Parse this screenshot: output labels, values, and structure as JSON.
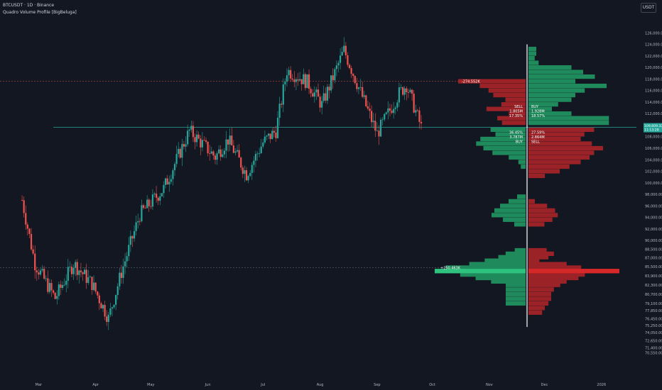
{
  "header": {
    "symbol_line": "BTCUSDT · 1D · Binance",
    "indicator_line": "Quadro Volume Profile [BigBeluga]",
    "currency_button": "USDT"
  },
  "colors": {
    "background": "#131722",
    "up": "#26a69a",
    "down": "#ef5350",
    "profile_green": "#1f8a5b",
    "profile_green_bright": "#2ec27e",
    "profile_red": "#9b2226",
    "profile_red_bright": "#d62828",
    "current_price_line": "#26a69a",
    "axis_text": "#b2b5be",
    "divider": "#ffffff"
  },
  "chart_data": {
    "type": "candlestick",
    "title": "",
    "y_axis": {
      "min": 69000,
      "max": 128000,
      "ticks": [
        "126,000.00",
        "124,000.00",
        "122,000.00",
        "120,000.00",
        "118,000.00",
        "116,000.00",
        "114,000.00",
        "112,000.00",
        "110,000.00",
        "108,000.00",
        "106,000.00",
        "104,000.00",
        "102,000.00",
        "100,000.00",
        "98,000.00",
        "96,000.00",
        "94,000.00",
        "92,000.00",
        "90,000.00",
        "88,500.00",
        "87,000.00",
        "85,500.00",
        "83,900.00",
        "82,300.00",
        "80,700.00",
        "79,100.00",
        "77,850.00",
        "76,450.00",
        "75,250.00",
        "74,050.00",
        "72,650.00",
        "71,400.00",
        "70,550.00"
      ]
    },
    "x_axis": {
      "labels": [
        "Mar",
        "Apr",
        "May",
        "Jun",
        "Jul",
        "Aug",
        "Sep",
        "Oct",
        "Nov",
        "Dec",
        "2026"
      ]
    },
    "current_price": {
      "value": 109609.33,
      "label": "109,609.33",
      "countdown": "11:13:28"
    },
    "price_path_keypoints": [
      {
        "date": "2025-02-20",
        "price": 97000
      },
      {
        "date": "2025-02-27",
        "price": 86000
      },
      {
        "date": "2025-03-10",
        "price": 80000
      },
      {
        "date": "2025-03-20",
        "price": 86000
      },
      {
        "date": "2025-03-30",
        "price": 82500
      },
      {
        "date": "2025-04-08",
        "price": 76500
      },
      {
        "date": "2025-04-15",
        "price": 84500
      },
      {
        "date": "2025-04-25",
        "price": 94500
      },
      {
        "date": "2025-05-08",
        "price": 99000
      },
      {
        "date": "2025-05-22",
        "price": 109000
      },
      {
        "date": "2025-06-05",
        "price": 104500
      },
      {
        "date": "2025-06-12",
        "price": 107500
      },
      {
        "date": "2025-06-22",
        "price": 101500
      },
      {
        "date": "2025-07-01",
        "price": 107000
      },
      {
        "date": "2025-07-08",
        "price": 109000
      },
      {
        "date": "2025-07-14",
        "price": 119500
      },
      {
        "date": "2025-07-25",
        "price": 117500
      },
      {
        "date": "2025-08-02",
        "price": 113500
      },
      {
        "date": "2025-08-14",
        "price": 123000
      },
      {
        "date": "2025-08-22",
        "price": 116500
      },
      {
        "date": "2025-09-01",
        "price": 108500
      },
      {
        "date": "2025-09-13",
        "price": 115500
      },
      {
        "date": "2025-09-17",
        "price": 117000
      },
      {
        "date": "2025-09-25",
        "price": 109600
      }
    ],
    "reference_lines": [
      {
        "price": 117600,
        "label": "-274.552K",
        "style": "dashed",
        "color": "red"
      },
      {
        "price": 85300,
        "label": "+250.463K",
        "style": "dashed",
        "color": "green"
      }
    ],
    "profile_annotations": {
      "upper_left": [
        "SELL",
        "1.805M",
        "17.35%"
      ],
      "upper_right": [
        "BUY",
        "1.928M",
        "18.57%"
      ],
      "lower_left": [
        "36.45%",
        "3.787M",
        "BUY"
      ],
      "lower_right": [
        "27.59%",
        "2.864M",
        "SELL"
      ]
    },
    "volume_profile": {
      "upper_left_bins": [
        {
          "price": 117600,
          "vol": 1.0
        },
        {
          "price": 116800,
          "vol": 0.68
        },
        {
          "price": 116000,
          "vol": 0.55
        },
        {
          "price": 115200,
          "vol": 0.48
        },
        {
          "price": 114400,
          "vol": 0.3
        },
        {
          "price": 113600,
          "vol": 0.36
        },
        {
          "price": 112800,
          "vol": 0.58
        },
        {
          "price": 112000,
          "vol": 0.25
        },
        {
          "price": 111200,
          "vol": 0.42
        },
        {
          "price": 110400,
          "vol": 0.35
        }
      ],
      "upper_right_bins": [
        {
          "price": 123200,
          "vol": 0.1
        },
        {
          "price": 122400,
          "vol": 0.1
        },
        {
          "price": 121600,
          "vol": 0.08
        },
        {
          "price": 120800,
          "vol": 0.13
        },
        {
          "price": 120000,
          "vol": 0.55
        },
        {
          "price": 119200,
          "vol": 0.7
        },
        {
          "price": 118400,
          "vol": 0.85
        },
        {
          "price": 117600,
          "vol": 0.6
        },
        {
          "price": 116800,
          "vol": 1.0
        },
        {
          "price": 116000,
          "vol": 0.72
        },
        {
          "price": 115200,
          "vol": 0.6
        },
        {
          "price": 114400,
          "vol": 0.55
        },
        {
          "price": 113600,
          "vol": 0.38
        },
        {
          "price": 112800,
          "vol": 0.3
        },
        {
          "price": 112000,
          "vol": 0.55
        },
        {
          "price": 111200,
          "vol": 1.03
        },
        {
          "price": 110400,
          "vol": 1.03
        }
      ],
      "upper_middle_left_bins": [
        {
          "price": 109200,
          "vol": 0.58
        },
        {
          "price": 108400,
          "vol": 0.5
        },
        {
          "price": 107600,
          "vol": 0.75
        },
        {
          "price": 106800,
          "vol": 0.82
        },
        {
          "price": 106000,
          "vol": 0.7
        },
        {
          "price": 105200,
          "vol": 0.55
        },
        {
          "price": 104400,
          "vol": 0.28
        },
        {
          "price": 103600,
          "vol": 0.12
        },
        {
          "price": 102800,
          "vol": 0.08
        }
      ],
      "upper_middle_right_bins": [
        {
          "price": 109200,
          "vol": 0.88
        },
        {
          "price": 108400,
          "vol": 0.75
        },
        {
          "price": 107600,
          "vol": 0.7
        },
        {
          "price": 106800,
          "vol": 0.85
        },
        {
          "price": 106000,
          "vol": 1.0
        },
        {
          "price": 105200,
          "vol": 0.88
        },
        {
          "price": 104400,
          "vol": 0.82
        },
        {
          "price": 103600,
          "vol": 0.7
        },
        {
          "price": 102800,
          "vol": 0.55
        },
        {
          "price": 102000,
          "vol": 0.42
        },
        {
          "price": 101200,
          "vol": 0.22
        }
      ],
      "lower_middle_left_bins": [
        {
          "price": 97600,
          "vol": 0.15
        },
        {
          "price": 96800,
          "vol": 0.3
        },
        {
          "price": 96000,
          "vol": 0.45
        },
        {
          "price": 95200,
          "vol": 0.55
        },
        {
          "price": 94400,
          "vol": 0.6
        },
        {
          "price": 93600,
          "vol": 0.4
        },
        {
          "price": 92800,
          "vol": 0.2
        }
      ],
      "lower_middle_right_bins": [
        {
          "price": 96800,
          "vol": 0.12
        },
        {
          "price": 96000,
          "vol": 0.35
        },
        {
          "price": 95200,
          "vol": 0.5
        },
        {
          "price": 94400,
          "vol": 0.55
        },
        {
          "price": 93600,
          "vol": 0.45
        },
        {
          "price": 92800,
          "vol": 0.3
        }
      ],
      "lower_left_bins": [
        {
          "price": 88300,
          "vol": 0.12
        },
        {
          "price": 87700,
          "vol": 0.22
        },
        {
          "price": 87100,
          "vol": 0.3
        },
        {
          "price": 86500,
          "vol": 0.45
        },
        {
          "price": 85900,
          "vol": 0.62
        },
        {
          "price": 85300,
          "vol": 0.88
        },
        {
          "price": 84700,
          "vol": 1.0
        },
        {
          "price": 84100,
          "vol": 0.72
        },
        {
          "price": 83500,
          "vol": 0.55
        },
        {
          "price": 82900,
          "vol": 0.38
        },
        {
          "price": 82300,
          "vol": 0.25
        },
        {
          "price": 81500,
          "vol": 0.25
        },
        {
          "price": 80700,
          "vol": 0.25
        },
        {
          "price": 79900,
          "vol": 0.25
        },
        {
          "price": 79100,
          "vol": 0.25
        }
      ],
      "lower_right_bins": [
        {
          "price": 88300,
          "vol": 0.2
        },
        {
          "price": 87700,
          "vol": 0.28
        },
        {
          "price": 87100,
          "vol": 0.22
        },
        {
          "price": 86500,
          "vol": 0.12
        },
        {
          "price": 85900,
          "vol": 0.42
        },
        {
          "price": 85300,
          "vol": 0.58
        },
        {
          "price": 84700,
          "vol": 1.0
        },
        {
          "price": 84100,
          "vol": 0.62
        },
        {
          "price": 83500,
          "vol": 0.55
        },
        {
          "price": 82900,
          "vol": 0.42
        },
        {
          "price": 82300,
          "vol": 0.35
        },
        {
          "price": 81500,
          "vol": 0.28
        },
        {
          "price": 80700,
          "vol": 0.25
        },
        {
          "price": 79900,
          "vol": 0.25
        },
        {
          "price": 79100,
          "vol": 0.22
        },
        {
          "price": 78300,
          "vol": 0.18
        },
        {
          "price": 77500,
          "vol": 0.15
        }
      ]
    }
  }
}
